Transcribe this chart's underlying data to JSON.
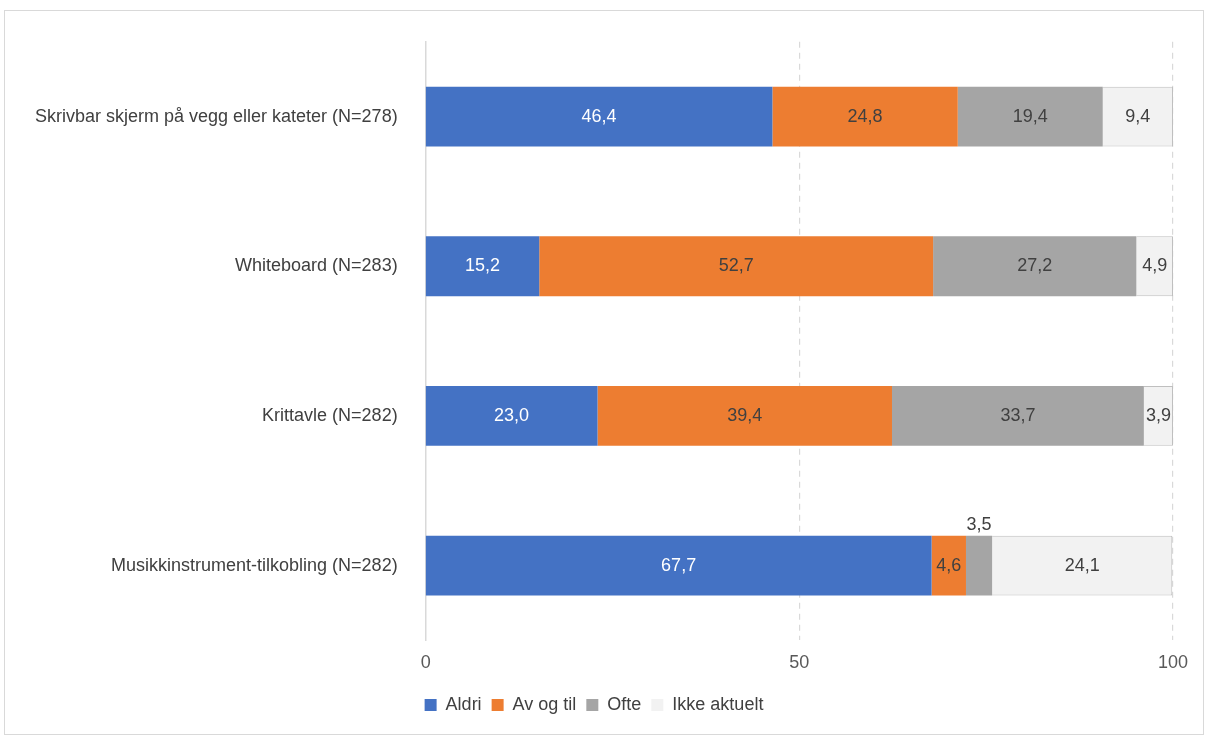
{
  "chart_data": {
    "type": "bar",
    "orientation": "horizontal",
    "stacked": true,
    "categories": [
      "Skrivbar skjerm på vegg eller kateter (N=278)",
      "Whiteboard (N=283)",
      "Krittavle (N=282)",
      "Musikkinstrument-tilkobling (N=282)"
    ],
    "series": [
      {
        "name": "Aldri",
        "color": "#4472c4",
        "values": [
          46.4,
          15.2,
          23.0,
          67.7
        ],
        "value_labels": [
          "46,4",
          "15,2",
          "23,0",
          "67,7"
        ]
      },
      {
        "name": "Av og til",
        "color": "#ed7d31",
        "values": [
          24.8,
          52.7,
          39.4,
          4.6
        ],
        "value_labels": [
          "24,8",
          "52,7",
          "39,4",
          "4,6"
        ]
      },
      {
        "name": "Ofte",
        "color": "#a5a5a5",
        "values": [
          19.4,
          27.2,
          33.7,
          3.5
        ],
        "value_labels": [
          "19,4",
          "27,2",
          "33,7",
          "3,5"
        ]
      },
      {
        "name": "Ikke aktuelt",
        "color": "#f2f2f2",
        "values": [
          9.4,
          4.9,
          3.9,
          24.1
        ],
        "value_labels": [
          "9,4",
          "4,9",
          "3,9",
          "24,1"
        ]
      }
    ],
    "xlim": [
      0,
      100
    ],
    "xticks": [
      0,
      50,
      100
    ],
    "grid": "x",
    "legend": "bottom"
  }
}
